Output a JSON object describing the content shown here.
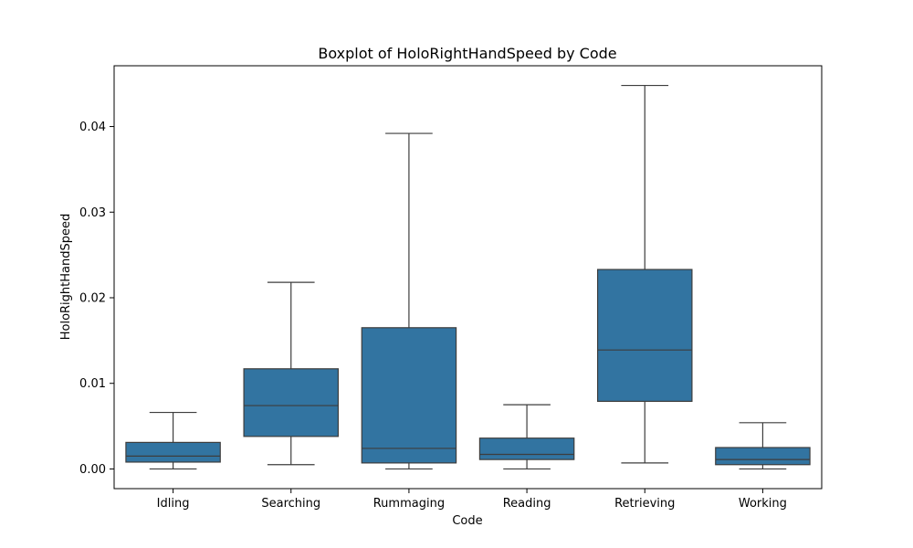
{
  "chart_data": {
    "type": "boxplot",
    "title": "Boxplot of HoloRightHandSpeed by Code",
    "xlabel": "Code",
    "ylabel": "HoloRightHandSpeed",
    "ylim": [
      -0.0023,
      0.0471
    ],
    "yticks": [
      0.0,
      0.01,
      0.02,
      0.03,
      0.04
    ],
    "ytick_labels": [
      "0.00",
      "0.01",
      "0.02",
      "0.03",
      "0.04"
    ],
    "categories": [
      "Idling",
      "Searching",
      "Rummaging",
      "Reading",
      "Retrieving",
      "Working"
    ],
    "boxes": [
      {
        "whisker_low": 0.0,
        "q1": 0.0008,
        "median": 0.0015,
        "q3": 0.0031,
        "whisker_high": 0.0066
      },
      {
        "whisker_low": 0.0005,
        "q1": 0.0038,
        "median": 0.0074,
        "q3": 0.0117,
        "whisker_high": 0.0218
      },
      {
        "whisker_low": 0.0,
        "q1": 0.0007,
        "median": 0.0024,
        "q3": 0.0165,
        "whisker_high": 0.0392
      },
      {
        "whisker_low": 0.0,
        "q1": 0.0011,
        "median": 0.0017,
        "q3": 0.0036,
        "whisker_high": 0.0075
      },
      {
        "whisker_low": 0.0007,
        "q1": 0.0079,
        "median": 0.0139,
        "q3": 0.0233,
        "whisker_high": 0.0448
      },
      {
        "whisker_low": 0.0,
        "q1": 0.0005,
        "median": 0.0011,
        "q3": 0.0025,
        "whisker_high": 0.0054
      }
    ],
    "box_color": "#3274a1",
    "line_color": "#3d3d3d",
    "grid": false,
    "legend": "none"
  }
}
